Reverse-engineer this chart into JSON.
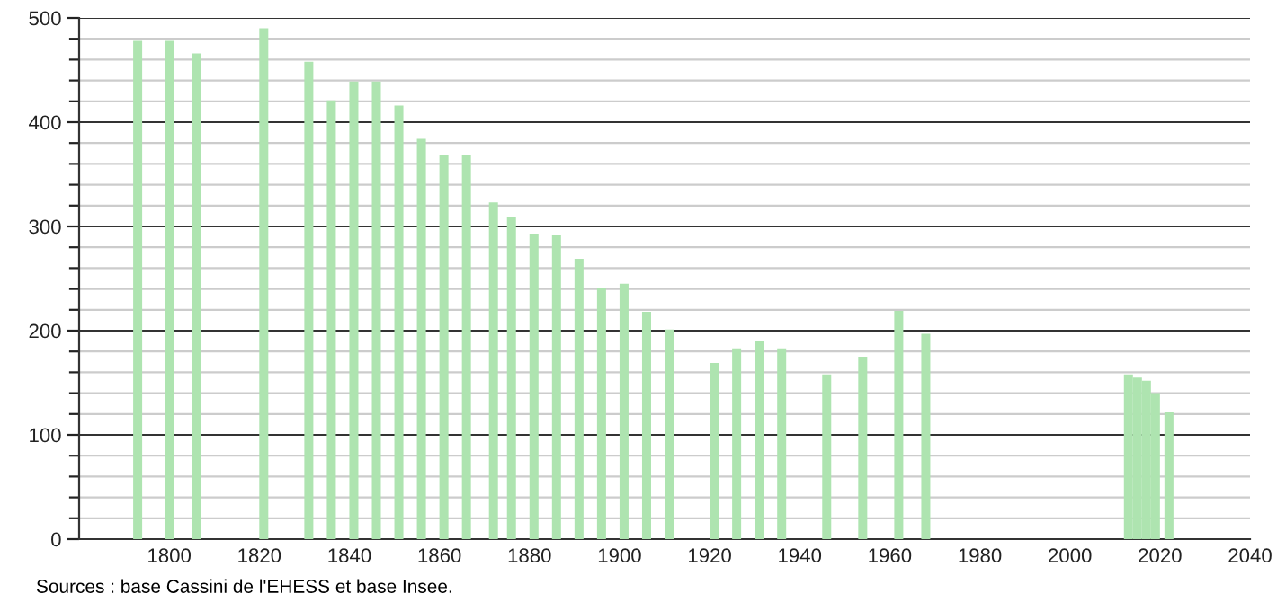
{
  "chart_data": {
    "type": "bar",
    "color": "#aee4b0",
    "x": [
      1793,
      1800,
      1806,
      1821,
      1831,
      1836,
      1841,
      1846,
      1851,
      1856,
      1861,
      1866,
      1872,
      1876,
      1881,
      1886,
      1891,
      1896,
      1901,
      1906,
      1911,
      1921,
      1926,
      1931,
      1936,
      1946,
      1954,
      1962,
      1968,
      2013,
      2015,
      2017,
      2019,
      2022
    ],
    "values": [
      478,
      478,
      466,
      490,
      458,
      421,
      439,
      439,
      416,
      384,
      368,
      368,
      323,
      309,
      293,
      292,
      269,
      241,
      245,
      218,
      201,
      169,
      183,
      190,
      183,
      158,
      175,
      219,
      197,
      158,
      155,
      152,
      140,
      122
    ],
    "xlim": [
      1780,
      2040
    ],
    "xticks": [
      1800,
      1820,
      1840,
      1860,
      1880,
      1900,
      1920,
      1940,
      1960,
      1980,
      2000,
      2020,
      2040
    ],
    "ylim": [
      0,
      500
    ],
    "yticks": [
      0,
      {
        "value": 20,
        "label": null
      },
      {
        "value": 40,
        "label": null
      },
      {
        "value": 60,
        "label": null
      },
      {
        "value": 80,
        "label": null
      },
      100,
      {
        "value": 120,
        "label": null
      },
      {
        "value": 140,
        "label": null
      },
      {
        "value": 160,
        "label": null
      },
      {
        "value": 180,
        "label": null
      },
      200,
      {
        "value": 220,
        "label": null
      },
      {
        "value": 240,
        "label": null
      },
      {
        "value": 260,
        "label": null
      },
      {
        "value": 280,
        "label": null
      },
      300,
      {
        "value": 320,
        "label": null
      },
      {
        "value": 340,
        "label": null
      },
      {
        "value": 360,
        "label": null
      },
      {
        "value": 380,
        "label": null
      },
      400,
      {
        "value": 420,
        "label": null
      },
      {
        "value": 440,
        "label": null
      },
      {
        "value": 460,
        "label": null
      },
      {
        "value": 480,
        "label": null
      },
      500
    ],
    "grid": "y",
    "annotations": [
      "Sources : base Cassini de l'EHESS et base Insee."
    ]
  }
}
